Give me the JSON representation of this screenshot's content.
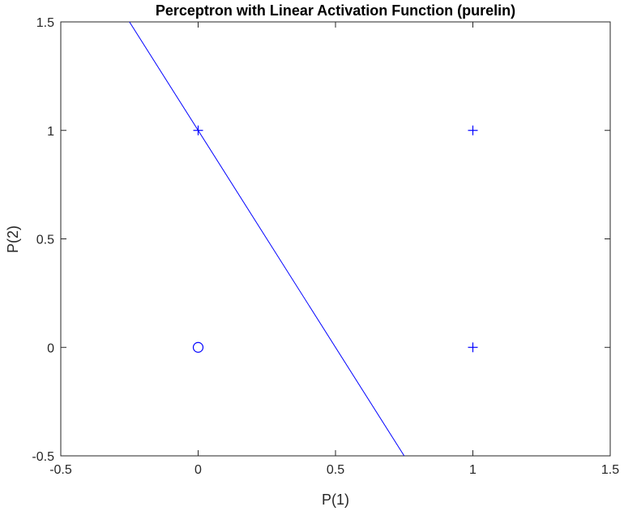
{
  "chart_data": {
    "type": "scatter",
    "title": "Perceptron with Linear Activation Function (purelin)",
    "xlabel": "P(1)",
    "ylabel": "P(2)",
    "xlim": [
      -0.5,
      1.5
    ],
    "ylim": [
      -0.5,
      1.5
    ],
    "x_ticks": [
      -0.5,
      0,
      0.5,
      1,
      1.5
    ],
    "y_ticks": [
      -0.5,
      0,
      0.5,
      1,
      1.5
    ],
    "x_tick_labels": [
      "-0.5",
      "0",
      "0.5",
      "1",
      "1.5"
    ],
    "y_tick_labels": [
      "-0.5",
      "0",
      "0.5",
      "1",
      "1.5"
    ],
    "grid": false,
    "color": "#0000ff",
    "points": [
      {
        "x": 0,
        "y": 0,
        "marker": "o"
      },
      {
        "x": 0,
        "y": 1,
        "marker": "+"
      },
      {
        "x": 1,
        "y": 0,
        "marker": "+"
      },
      {
        "x": 1,
        "y": 1,
        "marker": "+"
      }
    ],
    "decision_boundary": {
      "points": [
        [
          -0.25,
          1.5
        ],
        [
          0.75,
          -0.5
        ]
      ]
    }
  }
}
